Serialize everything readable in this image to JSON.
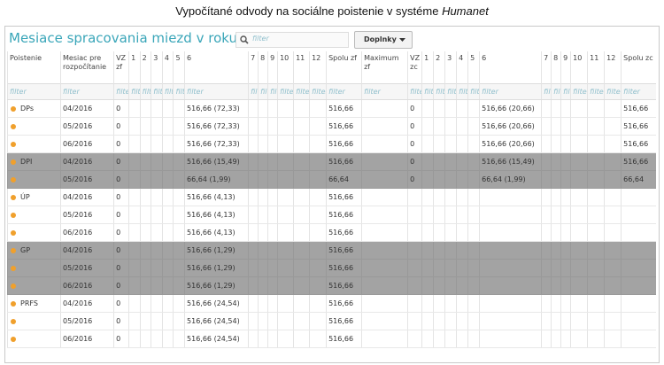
{
  "title": {
    "text": "Vypočítané odvody na sociálne poistenie v systéme",
    "emphasis": "Humanet"
  },
  "panel": {
    "heading": "Mesiace spracovania miezd v roku",
    "search_placeholder": "filter",
    "button": "Doplnky"
  },
  "table": {
    "headers": [
      "Poistenie",
      "Mesiac pre rozpočítanie",
      "VZ zf",
      "1",
      "2",
      "3",
      "4",
      "5",
      "6",
      "7",
      "8",
      "9",
      "10",
      "11",
      "12",
      "Spolu zf",
      "Maximum zf",
      "VZ zc",
      "1",
      "2",
      "3",
      "4",
      "5",
      "6",
      "7",
      "8",
      "9",
      "10",
      "11",
      "12",
      "Spolu zc"
    ],
    "filters": [
      "filter",
      "filter",
      "filter",
      "filter",
      "filter",
      "filter",
      "filter",
      "filter",
      "filter",
      "filter",
      "filter",
      "filter",
      "filter",
      "filter",
      "filter",
      "filter",
      "filter",
      "filter",
      "filter",
      "filter",
      "filter",
      "filter",
      "filter",
      "filter",
      "filter",
      "filter",
      "filter",
      "filter",
      "filter",
      "filter",
      "filter"
    ],
    "rows": [
      {
        "poistenie": "DPs",
        "mesiac": "04/2016",
        "vz_zf": "0",
        "m6_zf": "516,66 (72,33)",
        "spolu_zf": "516,66",
        "vz_zc": "0",
        "m6_zc": "516,66 (20,66)",
        "spolu_zc": "516,66"
      },
      {
        "mesiac": "05/2016",
        "vz_zf": "0",
        "m6_zf": "516,66 (72,33)",
        "spolu_zf": "516,66",
        "vz_zc": "0",
        "m6_zc": "516,66 (20,66)",
        "spolu_zc": "516,66"
      },
      {
        "mesiac": "06/2016",
        "vz_zf": "0",
        "m6_zf": "516,66 (72,33)",
        "spolu_zf": "516,66",
        "vz_zc": "0",
        "m6_zc": "516,66 (20,66)",
        "spolu_zc": "516,66"
      },
      {
        "poistenie": "DPI",
        "mesiac": "04/2016",
        "vz_zf": "0",
        "m6_zf": "516,66 (15,49)",
        "spolu_zf": "516,66",
        "vz_zc": "0",
        "m6_zc": "516,66 (15,49)",
        "spolu_zc": "516,66",
        "highlighted": true
      },
      {
        "mesiac": "05/2016",
        "vz_zf": "0",
        "m6_zf": "66,64 (1,99)",
        "spolu_zf": "66,64",
        "vz_zc": "0",
        "m6_zc": "66,64 (1,99)",
        "spolu_zc": "66,64",
        "highlighted": true
      },
      {
        "poistenie": "ÚP",
        "mesiac": "04/2016",
        "vz_zf": "0",
        "m6_zf": "516,66 (4,13)",
        "spolu_zf": "516,66"
      },
      {
        "mesiac": "05/2016",
        "vz_zf": "0",
        "m6_zf": "516,66 (4,13)",
        "spolu_zf": "516,66"
      },
      {
        "mesiac": "06/2016",
        "vz_zf": "0",
        "m6_zf": "516,66 (4,13)",
        "spolu_zf": "516,66"
      },
      {
        "poistenie": "GP",
        "mesiac": "04/2016",
        "vz_zf": "0",
        "m6_zf": "516,66 (1,29)",
        "spolu_zf": "516,66",
        "highlighted": true
      },
      {
        "mesiac": "05/2016",
        "vz_zf": "0",
        "m6_zf": "516,66 (1,29)",
        "spolu_zf": "516,66",
        "highlighted": true
      },
      {
        "mesiac": "06/2016",
        "vz_zf": "0",
        "m6_zf": "516,66 (1,29)",
        "spolu_zf": "516,66",
        "highlighted": true
      },
      {
        "poistenie": "PRFS",
        "mesiac": "04/2016",
        "vz_zf": "0",
        "m6_zf": "516,66 (24,54)",
        "spolu_zf": "516,66"
      },
      {
        "mesiac": "05/2016",
        "vz_zf": "0",
        "m6_zf": "516,66 (24,54)",
        "spolu_zf": "516,66"
      },
      {
        "mesiac": "06/2016",
        "vz_zf": "0",
        "m6_zf": "516,66 (24,54)",
        "spolu_zf": "516,66"
      }
    ]
  }
}
